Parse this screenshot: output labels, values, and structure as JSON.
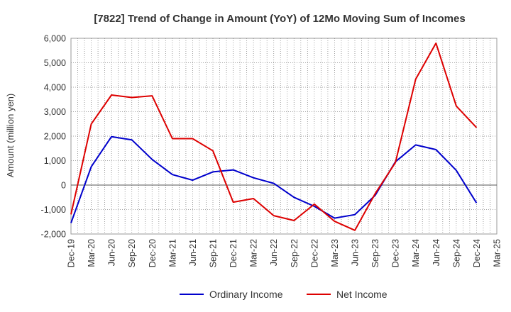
{
  "chart_data": {
    "type": "line",
    "title": "[7822]  Trend of Change in Amount (YoY) of 12Mo Moving Sum of Incomes",
    "xlabel": "",
    "ylabel": "Amount (million yen)",
    "ylim": [
      -2000,
      6000
    ],
    "yticks": [
      -2000,
      -1000,
      0,
      1000,
      2000,
      3000,
      4000,
      5000,
      6000
    ],
    "ytick_labels": [
      "-2,000",
      "-1,000",
      "0",
      "1,000",
      "2,000",
      "3,000",
      "4,000",
      "5,000",
      "6,000"
    ],
    "categories": [
      "Dec-19",
      "Mar-20",
      "Jun-20",
      "Sep-20",
      "Dec-20",
      "Mar-21",
      "Jun-21",
      "Sep-21",
      "Dec-21",
      "Mar-22",
      "Jun-22",
      "Sep-22",
      "Dec-22",
      "Mar-23",
      "Jun-23",
      "Sep-23",
      "Dec-23",
      "Mar-24",
      "Jun-24",
      "Sep-24",
      "Dec-24",
      "Mar-25"
    ],
    "grid": true,
    "legend_position": "bottom",
    "series": [
      {
        "name": "Ordinary Income",
        "color": "#0000cc",
        "values": [
          -1550,
          750,
          1980,
          1850,
          1050,
          430,
          200,
          540,
          620,
          300,
          70,
          -500,
          -870,
          -1350,
          -1210,
          -420,
          950,
          1640,
          1450,
          600,
          -730,
          null
        ]
      },
      {
        "name": "Net Income",
        "color": "#dd0000",
        "values": [
          -1200,
          2500,
          3680,
          3580,
          3650,
          1900,
          1900,
          1400,
          -700,
          -550,
          -1250,
          -1450,
          -780,
          -1480,
          -1850,
          -350,
          920,
          4330,
          5800,
          3230,
          2350,
          null
        ]
      }
    ]
  }
}
